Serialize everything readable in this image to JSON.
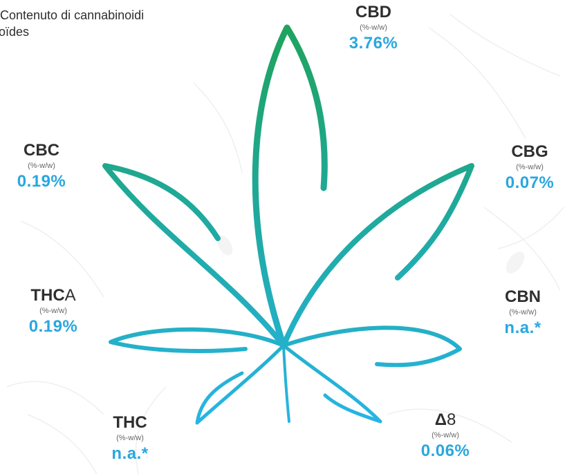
{
  "header": {
    "line1": "Contenuto di cannabinoidi",
    "line2": "oïdes"
  },
  "cannabinoids": [
    {
      "key": "cbd",
      "name": "CBD",
      "name_suffix": "",
      "unit": "(%-w/w)",
      "value": "3.76%"
    },
    {
      "key": "cbg",
      "name": "CBG",
      "name_suffix": "",
      "unit": "(%-w/w)",
      "value": "0.07%"
    },
    {
      "key": "cbn",
      "name": "CBN",
      "name_suffix": "",
      "unit": "(%-w/w)",
      "value": "n.a.*"
    },
    {
      "key": "d8",
      "name": "Δ",
      "name_suffix": "8",
      "unit": "(%-w/w)",
      "value": "0.06%"
    },
    {
      "key": "thc",
      "name": "THC",
      "name_suffix": "",
      "unit": "(%-w/w)",
      "value": "n.a.*"
    },
    {
      "key": "thca",
      "name": "THC",
      "name_suffix": "A",
      "unit": "(%-w/w)",
      "value": "0.19%"
    },
    {
      "key": "cbc",
      "name": "CBC",
      "name_suffix": "",
      "unit": "(%-w/w)",
      "value": "0.19%"
    }
  ],
  "colors": {
    "value_blue": "#29a7df",
    "leaf_green": "#1fa464",
    "leaf_teal": "#1fa8a0",
    "leaf_blue": "#27b3e4",
    "label_dark": "#2f2f2f"
  }
}
